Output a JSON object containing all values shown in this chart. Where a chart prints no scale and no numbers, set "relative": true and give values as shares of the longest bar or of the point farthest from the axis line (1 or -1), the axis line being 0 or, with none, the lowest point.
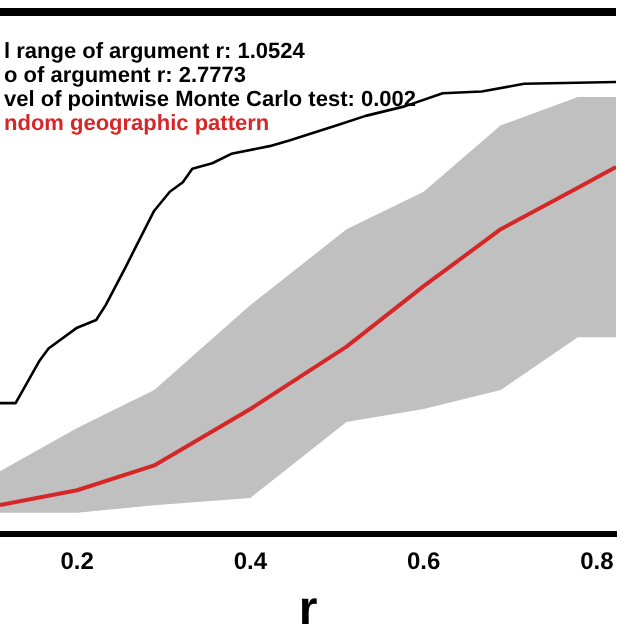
{
  "chart_data": {
    "type": "line",
    "relative": true,
    "xlabel": "r",
    "xlim": [
      0.111,
      0.822
    ],
    "xticks": [
      0.2,
      0.4,
      0.6,
      0.8
    ],
    "annotations": [
      "l range of argument r: 1.0524",
      "o of argument r: 2.7773",
      "vel of pointwise Monte Carlo test: 0.002"
    ],
    "series": [
      {
        "color": "#000000",
        "x": [
          0.111,
          0.129,
          0.156,
          0.167,
          0.2,
          0.222,
          0.233,
          0.256,
          0.267,
          0.289,
          0.307,
          0.322,
          0.333,
          0.356,
          0.378,
          0.422,
          0.444,
          0.5,
          0.533,
          0.578,
          0.622,
          0.667,
          0.716,
          0.822
        ],
        "values": [
          0.289,
          0.289,
          0.381,
          0.41,
          0.456,
          0.473,
          0.506,
          0.59,
          0.632,
          0.715,
          0.757,
          0.778,
          0.808,
          0.82,
          0.841,
          0.858,
          0.87,
          0.904,
          0.925,
          0.946,
          0.975,
          0.979,
          0.996,
          1
        ]
      },
      {
        "name": "ndom geographic pattern",
        "color": "#d62728",
        "x": [
          0.111,
          0.2,
          0.289,
          0.4,
          0.511,
          0.6,
          0.689,
          0.778,
          0.822
        ],
        "values": [
          0.063,
          0.096,
          0.151,
          0.276,
          0.414,
          0.548,
          0.674,
          0.766,
          0.812
        ],
        "lower": [
          0.046,
          0.046,
          0.063,
          0.079,
          0.247,
          0.276,
          0.318,
          0.435,
          0.435
        ],
        "upper": [
          0.138,
          0.234,
          0.318,
          0.506,
          0.674,
          0.757,
          0.904,
          0.967,
          0.967
        ]
      }
    ]
  }
}
